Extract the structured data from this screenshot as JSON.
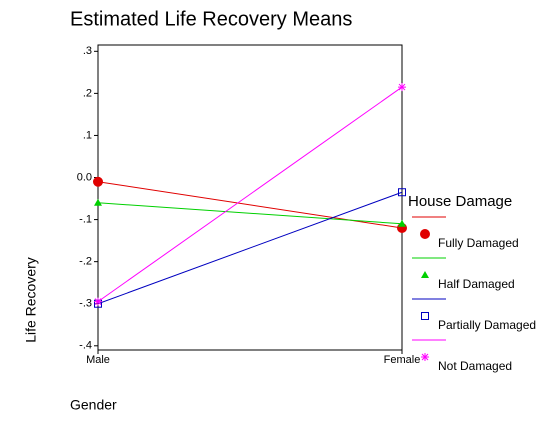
{
  "chart_data": {
    "type": "line",
    "title": "Estimated Life Recovery Means",
    "x_label": "Gender",
    "y_label": "Life Recovery",
    "legend_title": "House Damage",
    "categories": [
      "Male",
      "Female"
    ],
    "series": [
      {
        "name": "Fully Damaged",
        "color": "#e00000",
        "marker": "circle",
        "values": [
          -0.01,
          -0.12
        ]
      },
      {
        "name": "Half Damaged",
        "color": "#00d000",
        "marker": "triangle",
        "values": [
          -0.06,
          -0.11
        ]
      },
      {
        "name": "Partially Damaged",
        "color": "#0000c0",
        "marker": "square",
        "values": [
          -0.3,
          -0.035
        ]
      },
      {
        "name": "Not Damaged",
        "color": "#ff00ff",
        "marker": "star",
        "values": [
          -0.295,
          0.215
        ]
      }
    ],
    "ylim": [
      -0.41,
      0.315
    ],
    "yticks": [
      {
        "value": -0.4,
        "label": "-.4"
      },
      {
        "value": -0.3,
        "label": "-.3"
      },
      {
        "value": -0.2,
        "label": "-.2"
      },
      {
        "value": -0.1,
        "label": "-.1"
      },
      {
        "value": 0,
        "label": "0.0"
      },
      {
        "value": 0.1,
        "label": ".1"
      },
      {
        "value": 0.2,
        "label": ".2"
      },
      {
        "value": 0.3,
        "label": ".3"
      }
    ],
    "legend": "right"
  }
}
